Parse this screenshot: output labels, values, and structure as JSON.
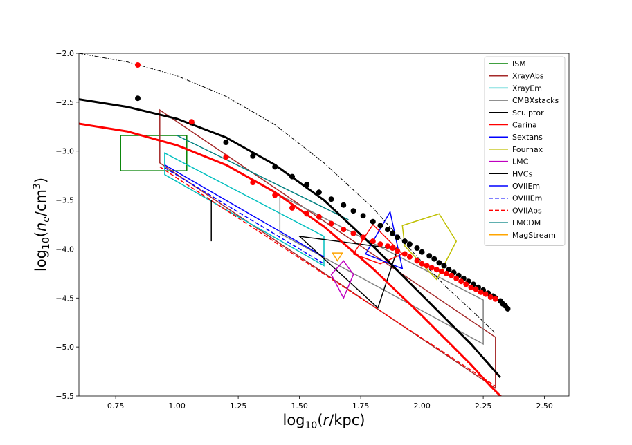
{
  "chart_data": {
    "type": "line",
    "xlabel": "log$_{10}$($r$/kpc)",
    "ylabel": "log$_{10}$($n_e$/cm$^3$)",
    "xlim": [
      0.6,
      2.6
    ],
    "ylim": [
      -5.5,
      -2.0
    ],
    "xticks": [
      0.75,
      1.0,
      1.25,
      1.5,
      1.75,
      2.0,
      2.25,
      2.5
    ],
    "xtick_labels": [
      "0.75",
      "1.00",
      "1.25",
      "1.50",
      "1.75",
      "2.00",
      "2.25",
      "2.50"
    ],
    "yticks": [
      -5.5,
      -5.0,
      -4.5,
      -4.0,
      -3.5,
      -3.0,
      -2.5,
      -2.0
    ],
    "ytick_labels": [
      "−5.5",
      "−5.0",
      "−4.5",
      "−4.0",
      "−3.5",
      "−3.0",
      "−2.5",
      "−2.0"
    ],
    "legend_position": "top-right",
    "legend": [
      {
        "name": "ISM",
        "color": "#008000",
        "dash": "solid"
      },
      {
        "name": "XrayAbs",
        "color": "#a52a2a",
        "dash": "solid"
      },
      {
        "name": "XrayEm",
        "color": "#00bfbf",
        "dash": "solid"
      },
      {
        "name": "CMBXstacks",
        "color": "#808080",
        "dash": "solid"
      },
      {
        "name": "Sculptor",
        "color": "#000000",
        "dash": "solid"
      },
      {
        "name": "Carina",
        "color": "#ff0000",
        "dash": "solid"
      },
      {
        "name": "Sextans",
        "color": "#0000ff",
        "dash": "solid"
      },
      {
        "name": "Fournax",
        "color": "#bfbf00",
        "dash": "solid"
      },
      {
        "name": "LMC",
        "color": "#bf00bf",
        "dash": "solid"
      },
      {
        "name": "HVCs",
        "color": "#000000",
        "dash": "solid"
      },
      {
        "name": "OVIIEm",
        "color": "#0000ff",
        "dash": "solid"
      },
      {
        "name": "OVIIIEm",
        "color": "#0000ff",
        "dash": "dashed"
      },
      {
        "name": "OVIIAbs",
        "color": "#ff0000",
        "dash": "dashed"
      },
      {
        "name": "LMCDM",
        "color": "#008080",
        "dash": "solid"
      },
      {
        "name": "MagStream",
        "color": "#ffa500",
        "dash": "solid"
      }
    ],
    "shapes": [
      {
        "name": "ISM",
        "color": "#008000",
        "dash": "solid",
        "width": 1.5,
        "closed": true,
        "points": [
          [
            0.77,
            -2.84
          ],
          [
            1.04,
            -2.84
          ],
          [
            1.04,
            -3.2
          ],
          [
            0.77,
            -3.2
          ]
        ]
      },
      {
        "name": "XrayAbs",
        "color": "#a52a2a",
        "dash": "solid",
        "width": 1.5,
        "closed": true,
        "points": [
          [
            0.93,
            -2.58
          ],
          [
            2.3,
            -4.9
          ],
          [
            2.3,
            -5.42
          ],
          [
            0.93,
            -3.12
          ]
        ]
      },
      {
        "name": "XrayEm",
        "color": "#00bfbf",
        "dash": "solid",
        "width": 1.5,
        "closed": true,
        "points": [
          [
            0.95,
            -3.02
          ],
          [
            1.6,
            -3.87
          ],
          [
            1.6,
            -4.17
          ],
          [
            0.95,
            -3.24
          ]
        ]
      },
      {
        "name": "CMBXstacks",
        "color": "#808080",
        "dash": "solid",
        "width": 1.5,
        "closed": true,
        "points": [
          [
            1.42,
            -3.45
          ],
          [
            2.25,
            -4.52
          ],
          [
            2.25,
            -4.97
          ],
          [
            1.42,
            -3.84
          ]
        ]
      },
      {
        "name": "LMCDM",
        "color": "#008080",
        "dash": "solid",
        "width": 1.5,
        "closed": false,
        "points": [
          [
            1.0,
            -2.84
          ],
          [
            1.7,
            -3.7
          ]
        ]
      },
      {
        "name": "OVIIEm",
        "color": "#0000ff",
        "dash": "solid",
        "width": 1.5,
        "closed": false,
        "points": [
          [
            0.95,
            -3.14
          ],
          [
            1.6,
            -4.08
          ]
        ]
      },
      {
        "name": "OVIIIEm",
        "color": "#0000ff",
        "dash": "dashed",
        "width": 1.5,
        "closed": false,
        "points": [
          [
            0.95,
            -3.17
          ],
          [
            1.6,
            -4.15
          ]
        ]
      },
      {
        "name": "OVIIAbs",
        "color": "#ff0000",
        "dash": "dashed",
        "width": 1.5,
        "closed": false,
        "points": [
          [
            0.93,
            -3.16
          ],
          [
            2.3,
            -5.4
          ]
        ]
      },
      {
        "name": "Sculptor",
        "color": "#000000",
        "dash": "solid",
        "width": 1.5,
        "closed": false,
        "points": [
          [
            1.14,
            -3.5
          ],
          [
            1.14,
            -3.92
          ]
        ]
      },
      {
        "name": "HVCs",
        "color": "#000000",
        "dash": "solid",
        "width": 1.5,
        "closed": true,
        "points": [
          [
            1.5,
            -3.87
          ],
          [
            1.82,
            -4.6
          ],
          [
            1.9,
            -4.0
          ]
        ]
      },
      {
        "name": "Carina",
        "color": "#ff0000",
        "dash": "solid",
        "width": 1.5,
        "closed": true,
        "points": [
          [
            1.72,
            -4.05
          ],
          [
            1.8,
            -3.75
          ],
          [
            1.92,
            -4.05
          ],
          [
            1.83,
            -4.15
          ]
        ]
      },
      {
        "name": "Sextans",
        "color": "#0000ff",
        "dash": "solid",
        "width": 1.5,
        "closed": true,
        "points": [
          [
            1.77,
            -4.05
          ],
          [
            1.87,
            -3.62
          ],
          [
            1.92,
            -4.2
          ]
        ]
      },
      {
        "name": "Fournax",
        "color": "#bfbf00",
        "dash": "solid",
        "width": 1.5,
        "closed": true,
        "points": [
          [
            1.92,
            -3.76
          ],
          [
            2.07,
            -3.64
          ],
          [
            2.14,
            -3.92
          ],
          [
            2.06,
            -4.31
          ],
          [
            1.93,
            -3.97
          ]
        ]
      },
      {
        "name": "LMC",
        "color": "#bf00bf",
        "dash": "solid",
        "width": 1.5,
        "closed": true,
        "points": [
          [
            1.63,
            -4.26
          ],
          [
            1.68,
            -4.12
          ],
          [
            1.72,
            -4.26
          ],
          [
            1.68,
            -4.5
          ]
        ]
      },
      {
        "name": "MagStream",
        "color": "#ffa500",
        "dash": "solid",
        "width": 1.5,
        "closed": true,
        "points": [
          [
            1.635,
            -4.04
          ],
          [
            1.675,
            -4.04
          ],
          [
            1.655,
            -4.12
          ]
        ]
      }
    ],
    "curves": [
      {
        "name": "model-dashdot",
        "color": "#000000",
        "dash": "dashdot",
        "width": 1.0,
        "points": [
          [
            0.6,
            -2.0
          ],
          [
            0.8,
            -2.09
          ],
          [
            1.0,
            -2.23
          ],
          [
            1.2,
            -2.44
          ],
          [
            1.4,
            -2.73
          ],
          [
            1.6,
            -3.12
          ],
          [
            1.8,
            -3.58
          ],
          [
            1.9,
            -3.86
          ],
          [
            2.0,
            -4.13
          ],
          [
            2.1,
            -4.39
          ],
          [
            2.2,
            -4.62
          ],
          [
            2.3,
            -4.86
          ]
        ]
      },
      {
        "name": "model-black",
        "color": "#000000",
        "dash": "solid",
        "width": 3.0,
        "points": [
          [
            0.6,
            -2.47
          ],
          [
            0.8,
            -2.55
          ],
          [
            1.0,
            -2.67
          ],
          [
            1.2,
            -2.86
          ],
          [
            1.4,
            -3.14
          ],
          [
            1.6,
            -3.5
          ],
          [
            1.8,
            -3.97
          ],
          [
            2.0,
            -4.47
          ],
          [
            2.1,
            -4.72
          ],
          [
            2.2,
            -4.97
          ],
          [
            2.32,
            -5.31
          ]
        ]
      },
      {
        "name": "model-red",
        "color": "#ff0000",
        "dash": "solid",
        "width": 3.0,
        "points": [
          [
            0.6,
            -2.72
          ],
          [
            0.8,
            -2.8
          ],
          [
            1.0,
            -2.94
          ],
          [
            1.2,
            -3.14
          ],
          [
            1.4,
            -3.42
          ],
          [
            1.6,
            -3.77
          ],
          [
            1.8,
            -4.2
          ],
          [
            2.0,
            -4.68
          ],
          [
            2.1,
            -4.93
          ],
          [
            2.2,
            -5.18
          ],
          [
            2.28,
            -5.4
          ],
          [
            2.34,
            -5.55
          ]
        ]
      }
    ],
    "scatter_series": [
      {
        "name": "black-points",
        "color": "#000000",
        "x": [
          0.84,
          1.06,
          1.2,
          1.31,
          1.4,
          1.47,
          1.53,
          1.58,
          1.63,
          1.68,
          1.72,
          1.76,
          1.8,
          1.83,
          1.86,
          1.88,
          1.9,
          1.93,
          1.95,
          1.98,
          2.0,
          2.03,
          2.05,
          2.07,
          2.09,
          2.11,
          2.13,
          2.15,
          2.17,
          2.19,
          2.21,
          2.23,
          2.25,
          2.27,
          2.29,
          2.3,
          2.32,
          2.33,
          2.34,
          2.35
        ],
        "y": [
          -2.46,
          -2.71,
          -2.91,
          -3.05,
          -3.16,
          -3.26,
          -3.34,
          -3.42,
          -3.49,
          -3.55,
          -3.61,
          -3.66,
          -3.72,
          -3.76,
          -3.8,
          -3.84,
          -3.88,
          -3.92,
          -3.95,
          -3.99,
          -4.03,
          -4.07,
          -4.1,
          -4.14,
          -4.17,
          -4.21,
          -4.24,
          -4.27,
          -4.3,
          -4.33,
          -4.36,
          -4.39,
          -4.42,
          -4.45,
          -4.48,
          -4.5,
          -4.53,
          -4.56,
          -4.58,
          -4.61
        ]
      },
      {
        "name": "red-points",
        "color": "#ff0000",
        "x": [
          0.84,
          1.06,
          1.2,
          1.31,
          1.4,
          1.47,
          1.53,
          1.58,
          1.63,
          1.68,
          1.72,
          1.76,
          1.8,
          1.83,
          1.86,
          1.88,
          1.9,
          1.93,
          1.95,
          1.98,
          2.0,
          2.02,
          2.04,
          2.06,
          2.08,
          2.1,
          2.12,
          2.14,
          2.16,
          2.18,
          2.2,
          2.22,
          2.24,
          2.26,
          2.28,
          2.3
        ],
        "y": [
          -2.12,
          -2.7,
          -3.06,
          -3.32,
          -3.45,
          -3.58,
          -3.64,
          -3.67,
          -3.74,
          -3.8,
          -3.84,
          -3.88,
          -3.92,
          -3.95,
          -3.97,
          -3.99,
          -4.02,
          -4.05,
          -4.08,
          -4.12,
          -4.15,
          -4.17,
          -4.19,
          -4.21,
          -4.23,
          -4.25,
          -4.27,
          -4.3,
          -4.33,
          -4.36,
          -4.39,
          -4.41,
          -4.44,
          -4.46,
          -4.49,
          -4.51
        ]
      }
    ]
  }
}
